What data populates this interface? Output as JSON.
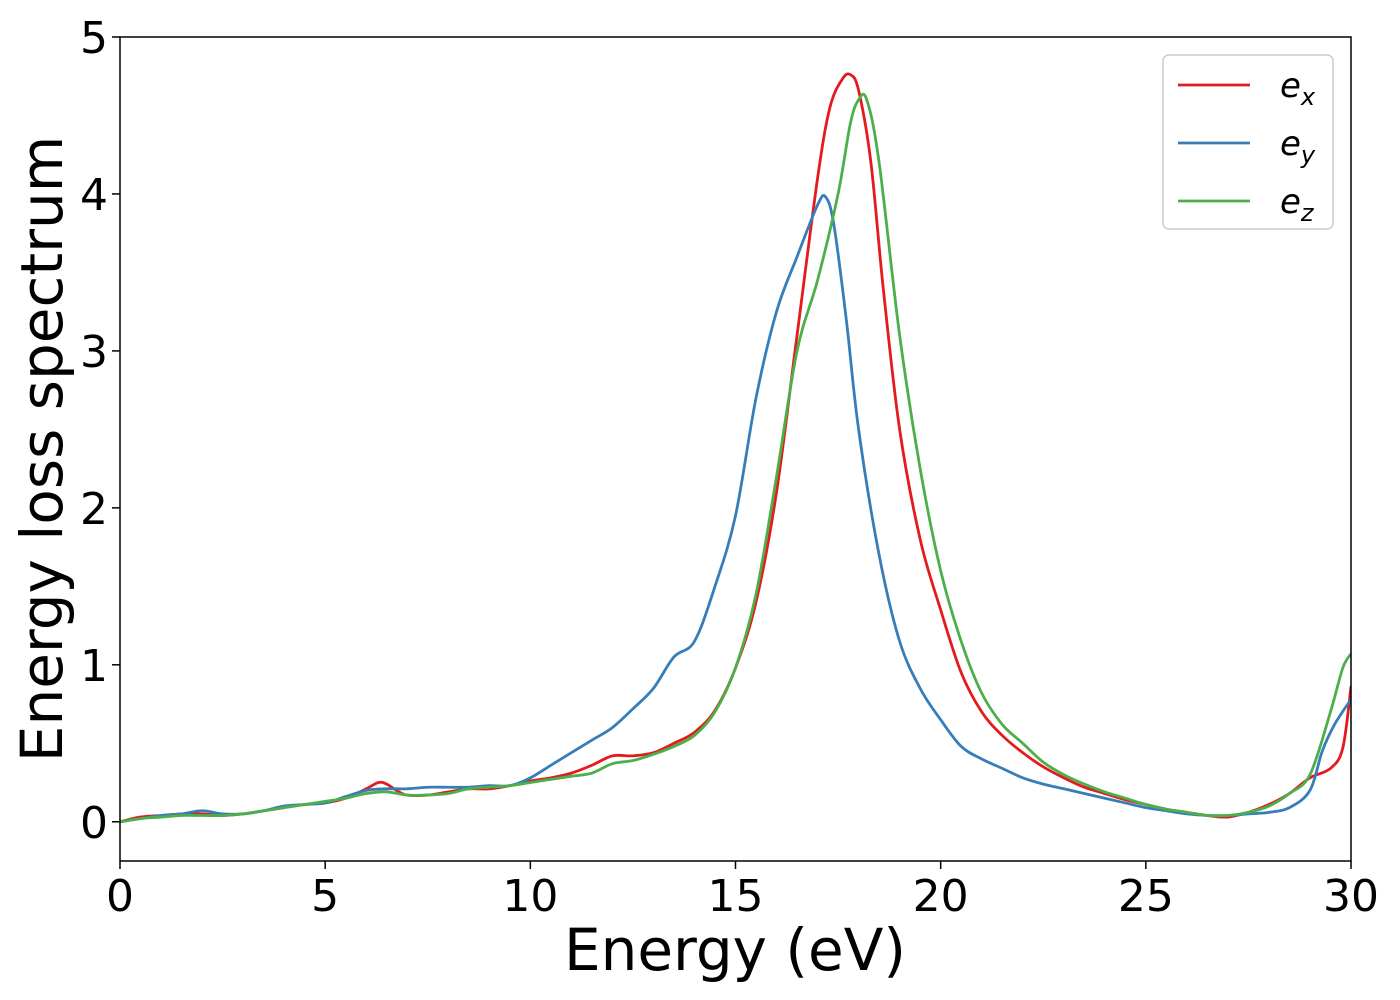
{
  "chart_data": {
    "type": "line",
    "xlabel": "Energy (eV)",
    "ylabel": "Energy loss spectrum",
    "xlim": [
      0,
      30
    ],
    "ylim": [
      -0.25,
      5.0
    ],
    "xticks": [
      0,
      5,
      10,
      15,
      20,
      25,
      30
    ],
    "yticks": [
      0,
      1,
      2,
      3,
      4,
      5
    ],
    "xtick_labels": [
      "0",
      "5",
      "10",
      "15",
      "20",
      "25",
      "30"
    ],
    "ytick_labels": [
      "0",
      "1",
      "2",
      "3",
      "4",
      "5"
    ],
    "grid": false,
    "legend_position": "top-right",
    "series": [
      {
        "name_base": "e",
        "name_sub": "x",
        "color": "#e41a1c",
        "x": [
          0,
          0.5,
          1,
          1.5,
          2,
          2.5,
          3,
          3.5,
          4,
          4.5,
          5,
          5.5,
          6,
          6.3,
          6.5,
          6.8,
          7,
          7.5,
          8,
          8.5,
          9,
          9.5,
          10,
          10.5,
          11,
          11.5,
          12,
          12.5,
          13,
          13.5,
          14,
          14.5,
          15,
          15.5,
          16,
          16.5,
          17,
          17.3,
          17.6,
          17.8,
          18.0,
          18.3,
          18.6,
          19,
          19.5,
          20,
          20.5,
          21,
          21.5,
          22,
          22.5,
          23,
          23.5,
          24,
          24.5,
          25,
          25.5,
          26,
          26.5,
          27,
          27.5,
          28,
          28.5,
          29,
          29.5,
          29.8,
          30
        ],
        "values": [
          0.0,
          0.03,
          0.04,
          0.05,
          0.05,
          0.04,
          0.05,
          0.07,
          0.09,
          0.11,
          0.12,
          0.15,
          0.21,
          0.25,
          0.24,
          0.19,
          0.17,
          0.17,
          0.19,
          0.21,
          0.21,
          0.23,
          0.26,
          0.28,
          0.31,
          0.36,
          0.42,
          0.42,
          0.44,
          0.5,
          0.57,
          0.71,
          0.98,
          1.4,
          2.1,
          3.1,
          4.1,
          4.55,
          4.73,
          4.76,
          4.66,
          4.2,
          3.4,
          2.5,
          1.8,
          1.35,
          0.95,
          0.7,
          0.55,
          0.44,
          0.35,
          0.28,
          0.22,
          0.18,
          0.14,
          0.11,
          0.08,
          0.06,
          0.04,
          0.03,
          0.06,
          0.11,
          0.18,
          0.28,
          0.34,
          0.47,
          0.86
        ]
      },
      {
        "name_base": "e",
        "name_sub": "y",
        "color": "#377eb8",
        "x": [
          0,
          0.5,
          1,
          1.5,
          2,
          2.5,
          3,
          3.5,
          4,
          4.5,
          5,
          5.5,
          6,
          6.5,
          7,
          7.5,
          8,
          8.5,
          9,
          9.5,
          10,
          10.5,
          11,
          11.5,
          12,
          12.5,
          13,
          13.5,
          14,
          14.5,
          15,
          15.5,
          16,
          16.5,
          17,
          17.2,
          17.4,
          17.7,
          18,
          18.5,
          19,
          19.5,
          20,
          20.5,
          21,
          21.5,
          22,
          22.5,
          23,
          23.5,
          24,
          24.5,
          25,
          25.5,
          26,
          26.5,
          27,
          27.5,
          28,
          28.5,
          29,
          29.3,
          29.6,
          30
        ],
        "values": [
          0.0,
          0.02,
          0.04,
          0.05,
          0.07,
          0.05,
          0.05,
          0.07,
          0.1,
          0.11,
          0.12,
          0.16,
          0.2,
          0.21,
          0.21,
          0.22,
          0.22,
          0.22,
          0.23,
          0.23,
          0.28,
          0.36,
          0.44,
          0.52,
          0.6,
          0.72,
          0.85,
          1.05,
          1.15,
          1.5,
          1.95,
          2.7,
          3.25,
          3.6,
          3.93,
          3.98,
          3.8,
          3.2,
          2.5,
          1.7,
          1.15,
          0.85,
          0.65,
          0.48,
          0.4,
          0.34,
          0.28,
          0.24,
          0.21,
          0.18,
          0.15,
          0.12,
          0.09,
          0.07,
          0.05,
          0.04,
          0.04,
          0.05,
          0.06,
          0.09,
          0.2,
          0.45,
          0.62,
          0.78
        ]
      },
      {
        "name_base": "e",
        "name_sub": "z",
        "color": "#4daf4a",
        "x": [
          0,
          0.5,
          1,
          1.5,
          2,
          2.5,
          3,
          3.5,
          4,
          4.5,
          5,
          5.5,
          6,
          6.5,
          7,
          7.5,
          8,
          8.5,
          9,
          9.5,
          10,
          10.5,
          11,
          11.5,
          12,
          12.5,
          13,
          13.5,
          14,
          14.5,
          15,
          15.5,
          16,
          16.5,
          17,
          17.5,
          17.8,
          18.0,
          18.2,
          18.5,
          19,
          19.5,
          20,
          20.5,
          21,
          21.5,
          22,
          22.5,
          23,
          23.5,
          24,
          24.5,
          25,
          25.5,
          26,
          26.5,
          27,
          27.5,
          28,
          28.5,
          29,
          29.5,
          29.8,
          30
        ],
        "values": [
          0.0,
          0.02,
          0.03,
          0.04,
          0.04,
          0.04,
          0.05,
          0.07,
          0.09,
          0.11,
          0.13,
          0.15,
          0.18,
          0.19,
          0.17,
          0.17,
          0.18,
          0.21,
          0.22,
          0.23,
          0.25,
          0.27,
          0.29,
          0.31,
          0.37,
          0.39,
          0.43,
          0.48,
          0.55,
          0.7,
          0.98,
          1.45,
          2.2,
          3.0,
          3.45,
          4.0,
          4.45,
          4.6,
          4.6,
          4.2,
          3.1,
          2.25,
          1.6,
          1.15,
          0.82,
          0.62,
          0.5,
          0.38,
          0.3,
          0.24,
          0.19,
          0.15,
          0.11,
          0.08,
          0.06,
          0.04,
          0.04,
          0.06,
          0.1,
          0.18,
          0.3,
          0.7,
          0.98,
          1.07
        ]
      }
    ]
  }
}
